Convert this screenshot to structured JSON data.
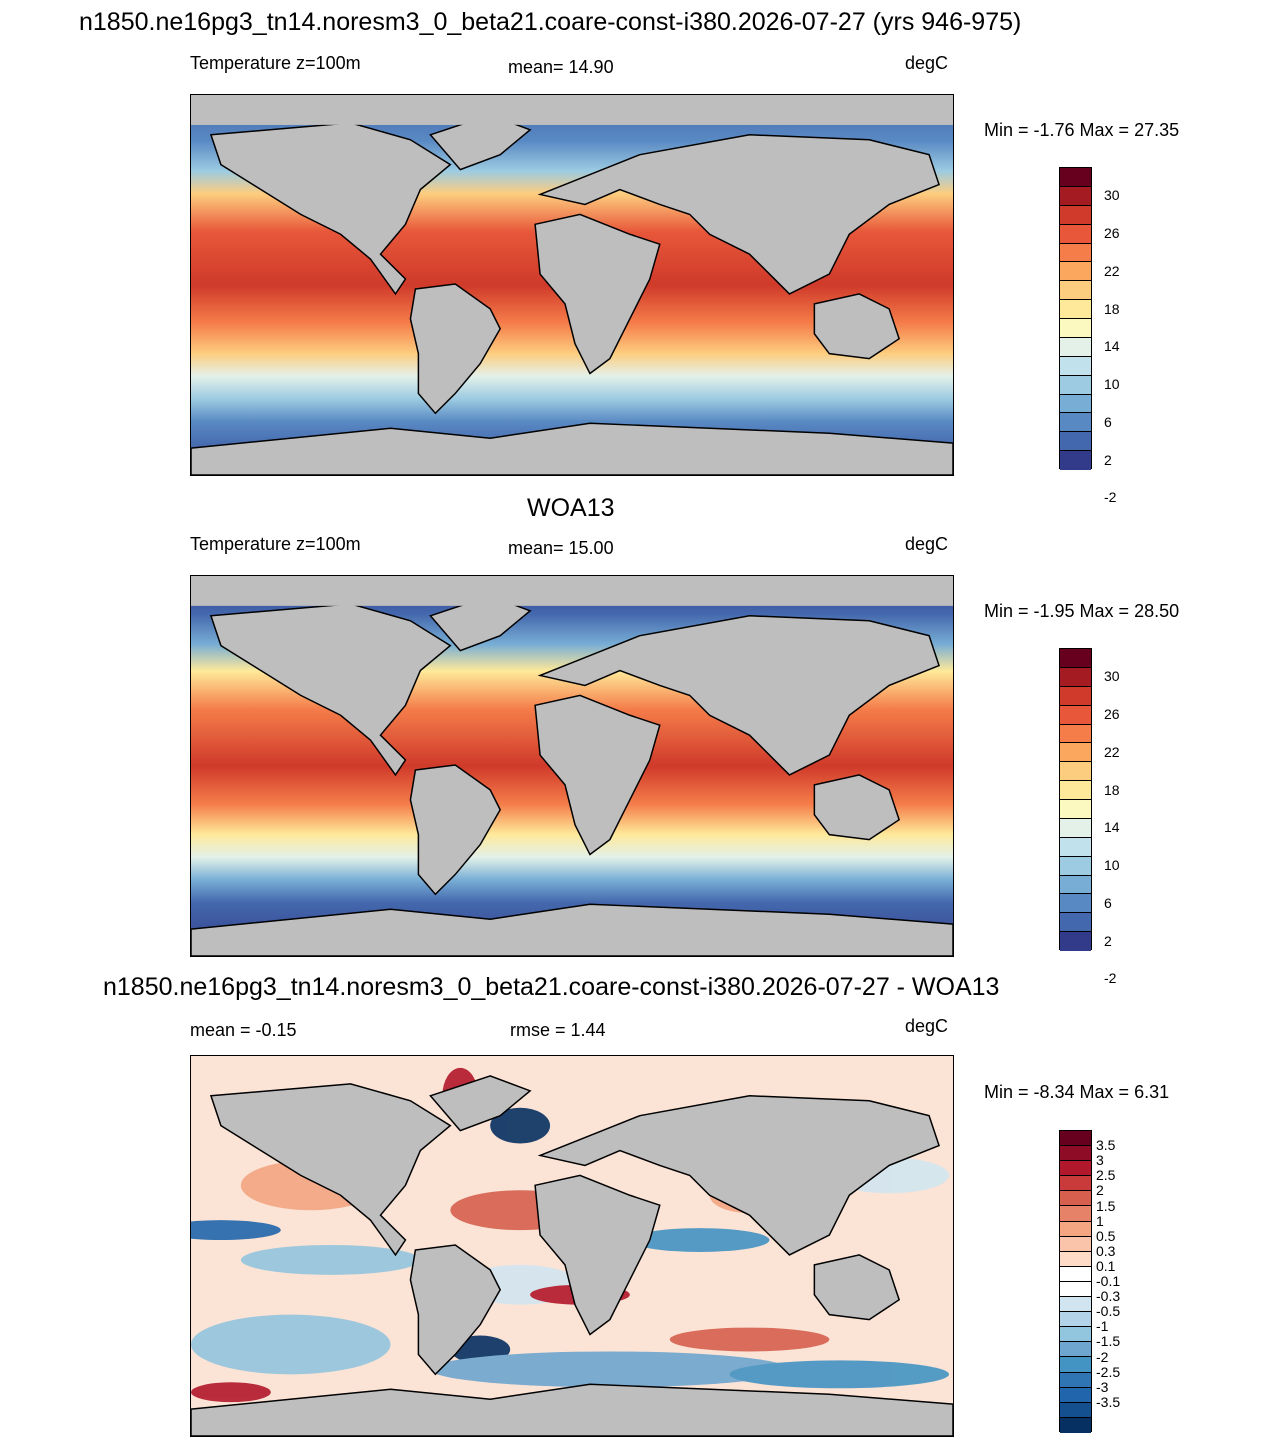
{
  "main_title": "n1850.ne16pg3_tn14.noresm3_0_beta21.coare-const-i380.2026-07-27 (yrs 946-975)",
  "panels": [
    {
      "title": "",
      "left_label": "Temperature z=100m",
      "center_label": "mean=  14.90",
      "right_label": "degC",
      "minmax": "Min =  -1.76 Max =  27.35",
      "colorbar": {
        "labels": [
          "30",
          "26",
          "22",
          "18",
          "14",
          "10",
          "6",
          "2",
          "-2"
        ],
        "colors": [
          "#67001f",
          "#a41c22",
          "#cf3a2a",
          "#e8573a",
          "#f57d4a",
          "#fba75d",
          "#fdcd7f",
          "#fee99a",
          "#fbf8c0",
          "#e3f1e9",
          "#c1e1ec",
          "#9ccbe2",
          "#78aed5",
          "#5989c3",
          "#4468ad",
          "#323b8a"
        ]
      }
    },
    {
      "title": "WOA13",
      "left_label": "Temperature z=100m",
      "center_label": "mean=  15.00",
      "right_label": "degC",
      "minmax": "Min =  -1.95 Max =  28.50",
      "colorbar": {
        "labels": [
          "30",
          "26",
          "22",
          "18",
          "14",
          "10",
          "6",
          "2",
          "-2"
        ],
        "colors": [
          "#67001f",
          "#a41c22",
          "#cf3a2a",
          "#e8573a",
          "#f57d4a",
          "#fba75d",
          "#fdcd7f",
          "#fee99a",
          "#fbf8c0",
          "#e3f1e9",
          "#c1e1ec",
          "#9ccbe2",
          "#78aed5",
          "#5989c3",
          "#4468ad",
          "#323b8a"
        ]
      }
    },
    {
      "title": "n1850.ne16pg3_tn14.noresm3_0_beta21.coare-const-i380.2026-07-27 - WOA13",
      "left_label": "mean =  -0.15",
      "center_label": "rmse =   1.44",
      "right_label": "degC",
      "minmax": "Min =  -8.34 Max =   6.31",
      "colorbar": {
        "labels": [
          "3.5",
          "3",
          "2.5",
          "2",
          "1.5",
          "1",
          "0.5",
          "0.3",
          "0.1",
          "-0.1",
          "-0.3",
          "-0.5",
          "-1",
          "-1.5",
          "-2",
          "-2.5",
          "-3",
          "-3.5"
        ],
        "colors": [
          "#67001f",
          "#8e0c25",
          "#b2182b",
          "#c93a3b",
          "#d6604d",
          "#e58267",
          "#f4a582",
          "#f9c4a9",
          "#fddbc7",
          "#ffffff",
          "#ffffff",
          "#d1e5f0",
          "#b3d4e8",
          "#92c5de",
          "#6ea6cf",
          "#4393c3",
          "#2f74b3",
          "#2166ac",
          "#144f8f",
          "#053061"
        ]
      }
    }
  ],
  "colors": {
    "land": "#bebebe",
    "coast": "#000000"
  }
}
